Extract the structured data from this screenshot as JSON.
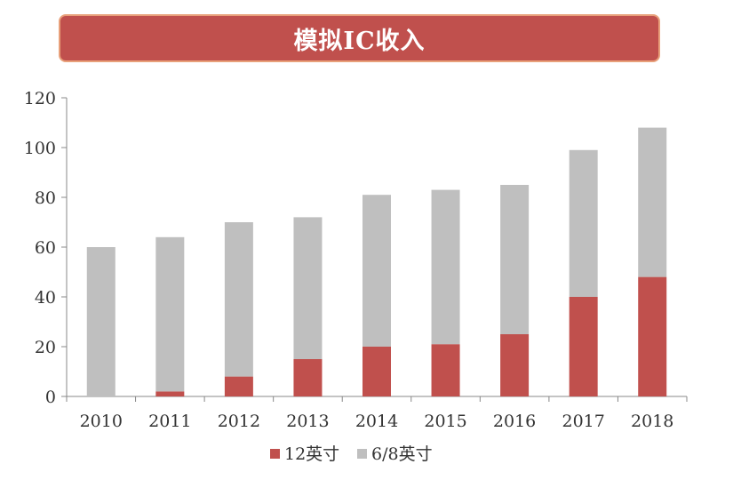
{
  "chart_data": {
    "type": "bar",
    "stacked": true,
    "title": "模拟IC收入",
    "categories": [
      "2010",
      "2011",
      "2012",
      "2013",
      "2014",
      "2015",
      "2016",
      "2017",
      "2018"
    ],
    "series": [
      {
        "name": "12英寸",
        "color": "#c0504d",
        "values": [
          0,
          2,
          8,
          15,
          20,
          21,
          25,
          40,
          48
        ]
      },
      {
        "name": "6/8英寸",
        "color": "#bfbfbf",
        "values": [
          60,
          62,
          62,
          57,
          61,
          62,
          60,
          59,
          60
        ]
      }
    ],
    "ylim": [
      0,
      120
    ],
    "yticks": [
      "0",
      "20",
      "40",
      "60",
      "80",
      "100",
      "120"
    ],
    "legend_position": "bottom",
    "grid": false
  }
}
